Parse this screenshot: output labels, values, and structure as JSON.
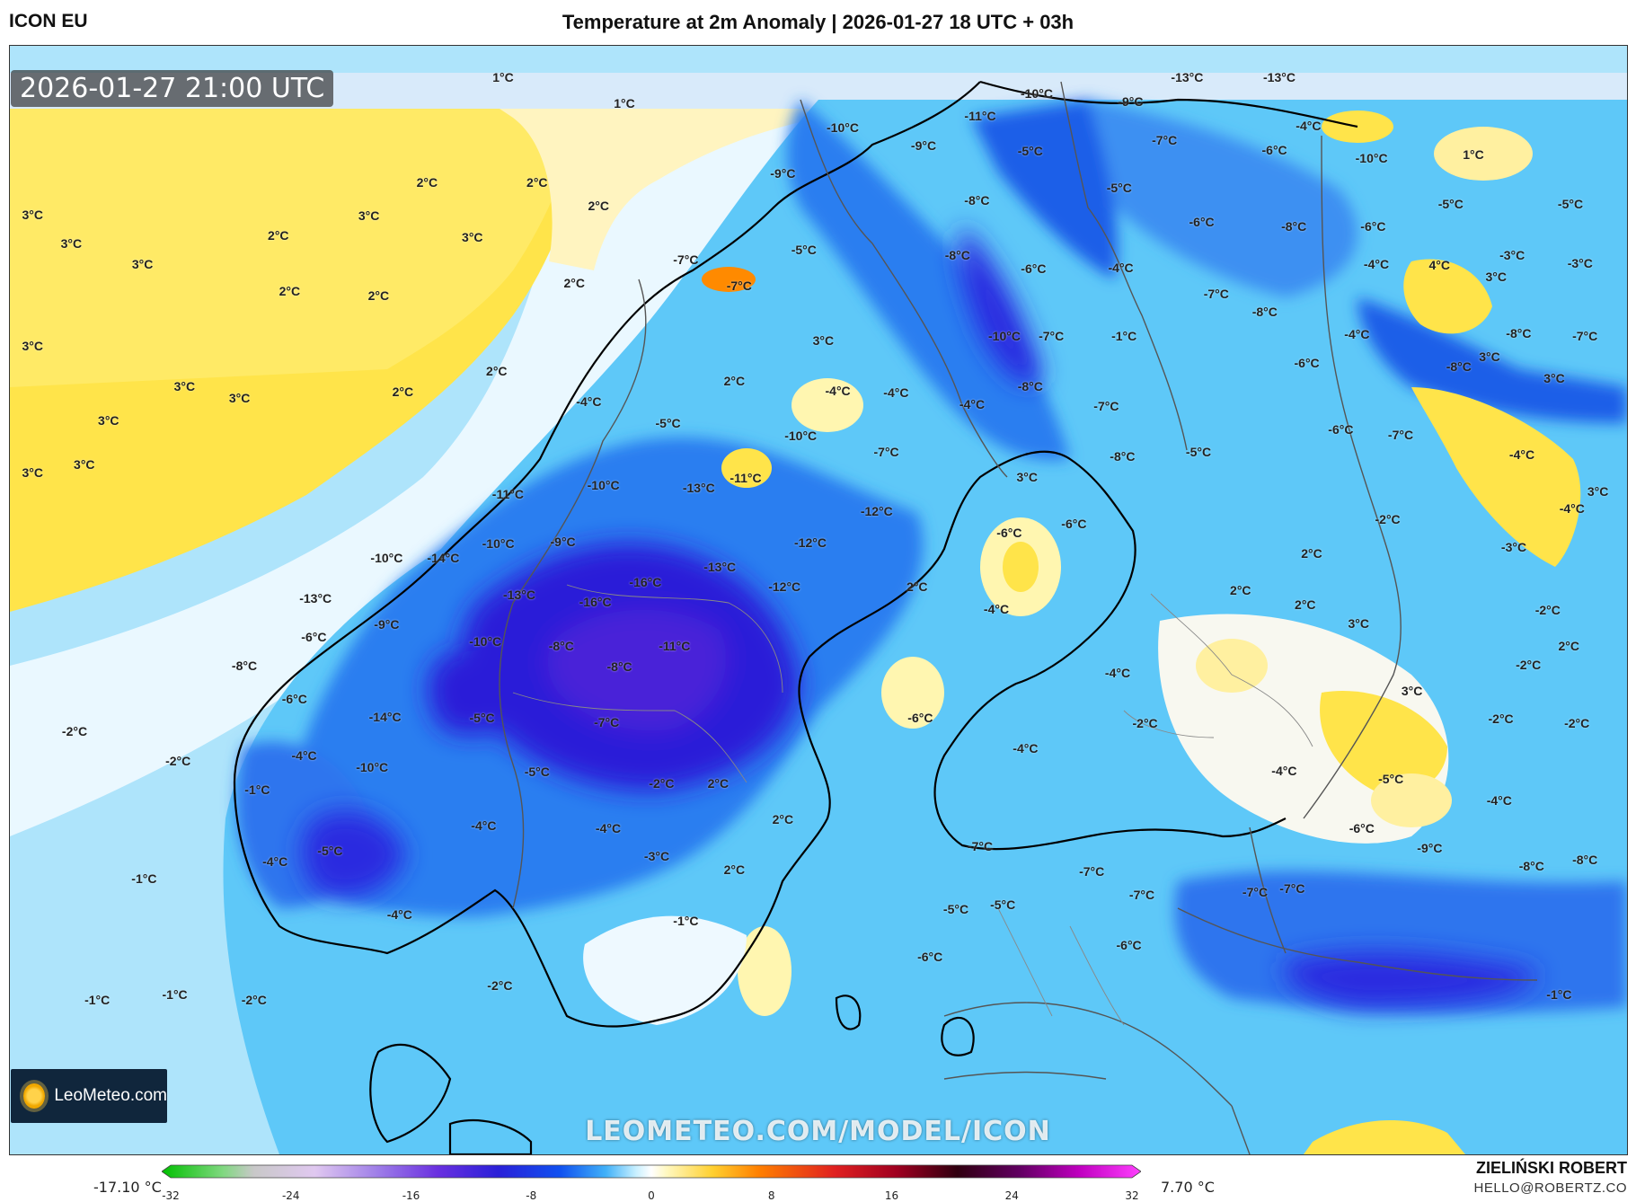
{
  "header": {
    "model": "ICON EU",
    "title": "Temperature at 2m Anomaly | 2026-01-27 18 UTC + 03h"
  },
  "map": {
    "timestamp": "2026-01-27 21:00 UTC",
    "labels": [
      {
        "t": "1°C",
        "x": 30.5,
        "y": 2.8
      },
      {
        "t": "1°C",
        "x": 38,
        "y": 5.2
      },
      {
        "t": "3°C",
        "x": 1.4,
        "y": 15.2
      },
      {
        "t": "3°C",
        "x": 3.8,
        "y": 17.8
      },
      {
        "t": "3°C",
        "x": 8.2,
        "y": 19.7
      },
      {
        "t": "2°C",
        "x": 16.6,
        "y": 17.1
      },
      {
        "t": "3°C",
        "x": 22.2,
        "y": 15.3
      },
      {
        "t": "2°C",
        "x": 25.8,
        "y": 12.3
      },
      {
        "t": "2°C",
        "x": 32.6,
        "y": 12.3
      },
      {
        "t": "3°C",
        "x": 28.6,
        "y": 17.3
      },
      {
        "t": "2°C",
        "x": 36.4,
        "y": 14.4
      },
      {
        "t": "2°C",
        "x": 17.3,
        "y": 22.1
      },
      {
        "t": "2°C",
        "x": 22.8,
        "y": 22.5
      },
      {
        "t": "2°C",
        "x": 34.9,
        "y": 21.4
      },
      {
        "t": "3°C",
        "x": 1.4,
        "y": 27.1
      },
      {
        "t": "3°C",
        "x": 10.8,
        "y": 30.7
      },
      {
        "t": "3°C",
        "x": 14.2,
        "y": 31.8
      },
      {
        "t": "2°C",
        "x": 30.1,
        "y": 29.3
      },
      {
        "t": "2°C",
        "x": 24.3,
        "y": 31.2
      },
      {
        "t": "3°C",
        "x": 6.1,
        "y": 33.8
      },
      {
        "t": "3°C",
        "x": 4.6,
        "y": 37.8
      },
      {
        "t": "3°C",
        "x": 1.4,
        "y": 38.5
      },
      {
        "t": "-10°C",
        "x": 63.5,
        "y": 4.3
      },
      {
        "t": "-9°C",
        "x": 69.3,
        "y": 5.0
      },
      {
        "t": "-13°C",
        "x": 78.5,
        "y": 2.8
      },
      {
        "t": "-13°C",
        "x": 72.8,
        "y": 2.8
      },
      {
        "t": "-11°C",
        "x": 60,
        "y": 6.3
      },
      {
        "t": "-10°C",
        "x": 51.5,
        "y": 7.4
      },
      {
        "t": "-9°C",
        "x": 56.5,
        "y": 9.0
      },
      {
        "t": "-7°C",
        "x": 71.4,
        "y": 8.5
      },
      {
        "t": "-5°C",
        "x": 63.1,
        "y": 9.5
      },
      {
        "t": "-6°C",
        "x": 78.2,
        "y": 9.4
      },
      {
        "t": "-4°C",
        "x": 80.3,
        "y": 7.2
      },
      {
        "t": "-10°C",
        "x": 84.2,
        "y": 10.1
      },
      {
        "t": "1°C",
        "x": 90.5,
        "y": 9.8
      },
      {
        "t": "-9°C",
        "x": 47.8,
        "y": 11.5
      },
      {
        "t": "-5°C",
        "x": 68.6,
        "y": 12.8
      },
      {
        "t": "-8°C",
        "x": 59.8,
        "y": 13.9
      },
      {
        "t": "-6°C",
        "x": 73.7,
        "y": 15.9
      },
      {
        "t": "-8°C",
        "x": 79.4,
        "y": 16.3
      },
      {
        "t": "-6°C",
        "x": 84.3,
        "y": 16.3
      },
      {
        "t": "-5°C",
        "x": 89.1,
        "y": 14.3
      },
      {
        "t": "-5°C",
        "x": 96.5,
        "y": 14.3
      },
      {
        "t": "-7°C",
        "x": 41.8,
        "y": 19.3
      },
      {
        "t": "-5°C",
        "x": 49.1,
        "y": 18.4
      },
      {
        "t": "-8°C",
        "x": 58.6,
        "y": 18.9
      },
      {
        "t": "-6°C",
        "x": 63.3,
        "y": 20.1
      },
      {
        "t": "-4°C",
        "x": 68.7,
        "y": 20.0
      },
      {
        "t": "-4°C",
        "x": 84.5,
        "y": 19.7
      },
      {
        "t": "4°C",
        "x": 88.4,
        "y": 19.8
      },
      {
        "t": "3°C",
        "x": 91.9,
        "y": 20.8
      },
      {
        "t": "-3°C",
        "x": 92.9,
        "y": 18.9
      },
      {
        "t": "-3°C",
        "x": 97.1,
        "y": 19.6
      },
      {
        "t": "-7°C",
        "x": 45.1,
        "y": 21.6
      },
      {
        "t": "-7°C",
        "x": 74.6,
        "y": 22.4
      },
      {
        "t": "-8°C",
        "x": 77.6,
        "y": 24.0
      },
      {
        "t": "-4°C",
        "x": 83.3,
        "y": 26.0
      },
      {
        "t": "3°C",
        "x": 50.3,
        "y": 26.6
      },
      {
        "t": "-10°C",
        "x": 61.5,
        "y": 26.2
      },
      {
        "t": "-7°C",
        "x": 64.4,
        "y": 26.2
      },
      {
        "t": "-1°C",
        "x": 68.9,
        "y": 26.2
      },
      {
        "t": "-8°C",
        "x": 93.3,
        "y": 25.9
      },
      {
        "t": "-7°C",
        "x": 97.4,
        "y": 26.2
      },
      {
        "t": "-8°C",
        "x": 89.6,
        "y": 28.9
      },
      {
        "t": "3°C",
        "x": 91.5,
        "y": 28.0
      },
      {
        "t": "-6°C",
        "x": 80.2,
        "y": 28.6
      },
      {
        "t": "2°C",
        "x": 44.8,
        "y": 30.2
      },
      {
        "t": "-4°C",
        "x": 51.2,
        "y": 31.1
      },
      {
        "t": "-4°C",
        "x": 54.8,
        "y": 31.3
      },
      {
        "t": "-8°C",
        "x": 63.1,
        "y": 30.7
      },
      {
        "t": "-7°C",
        "x": 67.8,
        "y": 32.5
      },
      {
        "t": "3°C",
        "x": 95.5,
        "y": 30.0
      },
      {
        "t": "-4°C",
        "x": 59.5,
        "y": 32.3
      },
      {
        "t": "-4°C",
        "x": 35.8,
        "y": 32.1
      },
      {
        "t": "-6°C",
        "x": 82.3,
        "y": 34.6
      },
      {
        "t": "-7°C",
        "x": 86.0,
        "y": 35.1
      },
      {
        "t": "-5°C",
        "x": 40.7,
        "y": 34.0
      },
      {
        "t": "-10°C",
        "x": 48.9,
        "y": 35.2
      },
      {
        "t": "-7°C",
        "x": 54.2,
        "y": 36.6
      },
      {
        "t": "-8°C",
        "x": 68.8,
        "y": 37.0
      },
      {
        "t": "-5°C",
        "x": 73.5,
        "y": 36.6
      },
      {
        "t": "-4°C",
        "x": 93.5,
        "y": 36.9
      },
      {
        "t": "3°C",
        "x": 62.9,
        "y": 38.9
      },
      {
        "t": "3°C",
        "x": 98.2,
        "y": 40.2
      },
      {
        "t": "-11°C",
        "x": 30.8,
        "y": 40.4
      },
      {
        "t": "-10°C",
        "x": 36.7,
        "y": 39.6
      },
      {
        "t": "-13°C",
        "x": 42.6,
        "y": 39.9
      },
      {
        "t": "-11°C",
        "x": 45.5,
        "y": 39.0
      },
      {
        "t": "-12°C",
        "x": 53.6,
        "y": 42.0
      },
      {
        "t": "-2°C",
        "x": 85.2,
        "y": 42.7
      },
      {
        "t": "-4°C",
        "x": 96.6,
        "y": 41.7
      },
      {
        "t": "-6°C",
        "x": 61.8,
        "y": 43.9
      },
      {
        "t": "-6°C",
        "x": 65.8,
        "y": 43.1
      },
      {
        "t": "-10°C",
        "x": 30.2,
        "y": 44.9
      },
      {
        "t": "-9°C",
        "x": 34.2,
        "y": 44.7
      },
      {
        "t": "-14°C",
        "x": 26.8,
        "y": 46.2
      },
      {
        "t": "-10°C",
        "x": 23.3,
        "y": 46.2
      },
      {
        "t": "-12°C",
        "x": 49.5,
        "y": 44.8
      },
      {
        "t": "2°C",
        "x": 80.5,
        "y": 45.8
      },
      {
        "t": "-3°C",
        "x": 93.0,
        "y": 45.2
      },
      {
        "t": "-13°C",
        "x": 43.9,
        "y": 47.0
      },
      {
        "t": "-16°C",
        "x": 39.3,
        "y": 48.4
      },
      {
        "t": "-12°C",
        "x": 47.9,
        "y": 48.8
      },
      {
        "t": "2°C",
        "x": 56.1,
        "y": 48.8
      },
      {
        "t": "-13°C",
        "x": 31.5,
        "y": 49.5
      },
      {
        "t": "-16°C",
        "x": 36.2,
        "y": 50.2
      },
      {
        "t": "-13°C",
        "x": 18.9,
        "y": 49.8
      },
      {
        "t": "2°C",
        "x": 76.1,
        "y": 49.1
      },
      {
        "t": "2°C",
        "x": 80.1,
        "y": 50.4
      },
      {
        "t": "3°C",
        "x": 83.4,
        "y": 52.1
      },
      {
        "t": "-4°C",
        "x": 61.0,
        "y": 50.8
      },
      {
        "t": "-2°C",
        "x": 95.1,
        "y": 50.9
      },
      {
        "t": "-9°C",
        "x": 23.3,
        "y": 52.2
      },
      {
        "t": "-6°C",
        "x": 18.8,
        "y": 53.3
      },
      {
        "t": "-10°C",
        "x": 29.4,
        "y": 53.7
      },
      {
        "t": "-8°C",
        "x": 34.1,
        "y": 54.1
      },
      {
        "t": "-11°C",
        "x": 41.1,
        "y": 54.1
      },
      {
        "t": "2°C",
        "x": 96.4,
        "y": 54.1
      },
      {
        "t": "-8°C",
        "x": 14.5,
        "y": 55.9
      },
      {
        "t": "-8°C",
        "x": 37.7,
        "y": 56.0
      },
      {
        "t": "-2°C",
        "x": 93.9,
        "y": 55.8
      },
      {
        "t": "-4°C",
        "x": 68.5,
        "y": 56.6
      },
      {
        "t": "3°C",
        "x": 86.7,
        "y": 58.2
      },
      {
        "t": "-6°C",
        "x": 17.6,
        "y": 58.9
      },
      {
        "t": "-14°C",
        "x": 23.2,
        "y": 60.5
      },
      {
        "t": "-5°C",
        "x": 29.2,
        "y": 60.6
      },
      {
        "t": "-7°C",
        "x": 36.9,
        "y": 61.0
      },
      {
        "t": "-6°C",
        "x": 56.3,
        "y": 60.6
      },
      {
        "t": "-2°C",
        "x": 70.2,
        "y": 61.1
      },
      {
        "t": "-2°C",
        "x": 92.2,
        "y": 60.7
      },
      {
        "t": "-2°C",
        "x": 96.9,
        "y": 61.1
      },
      {
        "t": "-2°C",
        "x": 4.0,
        "y": 61.8
      },
      {
        "t": "-4°C",
        "x": 62.8,
        "y": 63.4
      },
      {
        "t": "-4°C",
        "x": 18.2,
        "y": 64.0
      },
      {
        "t": "-2°C",
        "x": 10.4,
        "y": 64.5
      },
      {
        "t": "-10°C",
        "x": 22.4,
        "y": 65.1
      },
      {
        "t": "-4°C",
        "x": 78.8,
        "y": 65.4
      },
      {
        "t": "-5°C",
        "x": 85.4,
        "y": 66.1
      },
      {
        "t": "-5°C",
        "x": 32.6,
        "y": 65.5
      },
      {
        "t": "-2°C",
        "x": 40.3,
        "y": 66.5
      },
      {
        "t": "2°C",
        "x": 43.8,
        "y": 66.5
      },
      {
        "t": "-1°C",
        "x": 15.3,
        "y": 67.1
      },
      {
        "t": "-4°C",
        "x": 92.1,
        "y": 68.1
      },
      {
        "t": "-4°C",
        "x": 29.3,
        "y": 70.3
      },
      {
        "t": "-4°C",
        "x": 37.0,
        "y": 70.6
      },
      {
        "t": "2°C",
        "x": 47.8,
        "y": 69.8
      },
      {
        "t": "-6°C",
        "x": 83.6,
        "y": 70.6
      },
      {
        "t": "-9°C",
        "x": 87.8,
        "y": 72.4
      },
      {
        "t": "-5°C",
        "x": 19.8,
        "y": 72.6
      },
      {
        "t": "-4°C",
        "x": 16.4,
        "y": 73.6
      },
      {
        "t": "-7°C",
        "x": 60.0,
        "y": 72.2
      },
      {
        "t": "-3°C",
        "x": 40.0,
        "y": 73.1
      },
      {
        "t": "-8°C",
        "x": 94.1,
        "y": 74.0
      },
      {
        "t": "-8°C",
        "x": 97.4,
        "y": 73.4
      },
      {
        "t": "2°C",
        "x": 44.8,
        "y": 74.3
      },
      {
        "t": "-1°C",
        "x": 8.3,
        "y": 75.1
      },
      {
        "t": "-7°C",
        "x": 66.9,
        "y": 74.5
      },
      {
        "t": "-7°C",
        "x": 79.3,
        "y": 76.0
      },
      {
        "t": "-7°C",
        "x": 77.0,
        "y": 76.3
      },
      {
        "t": "-7°C",
        "x": 70.0,
        "y": 76.6
      },
      {
        "t": "-5°C",
        "x": 58.5,
        "y": 77.9
      },
      {
        "t": "-5°C",
        "x": 61.4,
        "y": 77.5
      },
      {
        "t": "-4°C",
        "x": 24.1,
        "y": 78.4
      },
      {
        "t": "-1°C",
        "x": 41.8,
        "y": 78.9
      },
      {
        "t": "-6°C",
        "x": 69.2,
        "y": 81.1
      },
      {
        "t": "-6°C",
        "x": 56.9,
        "y": 82.2
      },
      {
        "t": "-2°C",
        "x": 30.3,
        "y": 84.8
      },
      {
        "t": "-1°C",
        "x": 5.4,
        "y": 86.1
      },
      {
        "t": "-1°C",
        "x": 10.2,
        "y": 85.6
      },
      {
        "t": "-2°C",
        "x": 15.1,
        "y": 86.1
      },
      {
        "t": "-1°C",
        "x": 95.8,
        "y": 85.6
      }
    ],
    "watermark": "LEOMETEO.COM/MODEL/ICON",
    "logo_text": "LeoMeteo.com"
  },
  "colorbar": {
    "min_label": "-17.10 °C",
    "max_label": "7.70 °C",
    "range": [
      -32,
      32
    ],
    "ticks": [
      -32,
      -24,
      -16,
      -8,
      0,
      8,
      16,
      24,
      32
    ],
    "stops": [
      {
        "v": -32,
        "c": "#00c000"
      },
      {
        "v": -28,
        "c": "#80d880"
      },
      {
        "v": -26,
        "c": "#c8c8c8"
      },
      {
        "v": -22,
        "c": "#e0c8f0"
      },
      {
        "v": -18,
        "c": "#a080e8"
      },
      {
        "v": -14,
        "c": "#6a30e0"
      },
      {
        "v": -10,
        "c": "#2a20d8"
      },
      {
        "v": -6,
        "c": "#1050f0"
      },
      {
        "v": -3,
        "c": "#40b0f8"
      },
      {
        "v": -1,
        "c": "#c8f0ff"
      },
      {
        "v": 0,
        "c": "#ffffff"
      },
      {
        "v": 1,
        "c": "#fff8c0"
      },
      {
        "v": 4,
        "c": "#ffd030"
      },
      {
        "v": 7,
        "c": "#ff8000"
      },
      {
        "v": 12,
        "c": "#e02020"
      },
      {
        "v": 16,
        "c": "#a00020"
      },
      {
        "v": 20,
        "c": "#300010"
      },
      {
        "v": 24,
        "c": "#600060"
      },
      {
        "v": 28,
        "c": "#c000c0"
      },
      {
        "v": 32,
        "c": "#ff40ff"
      }
    ]
  },
  "credits": {
    "author": "ZIELIŃSKI ROBERT",
    "contact": "HELLO@ROBERTZ.CO"
  }
}
